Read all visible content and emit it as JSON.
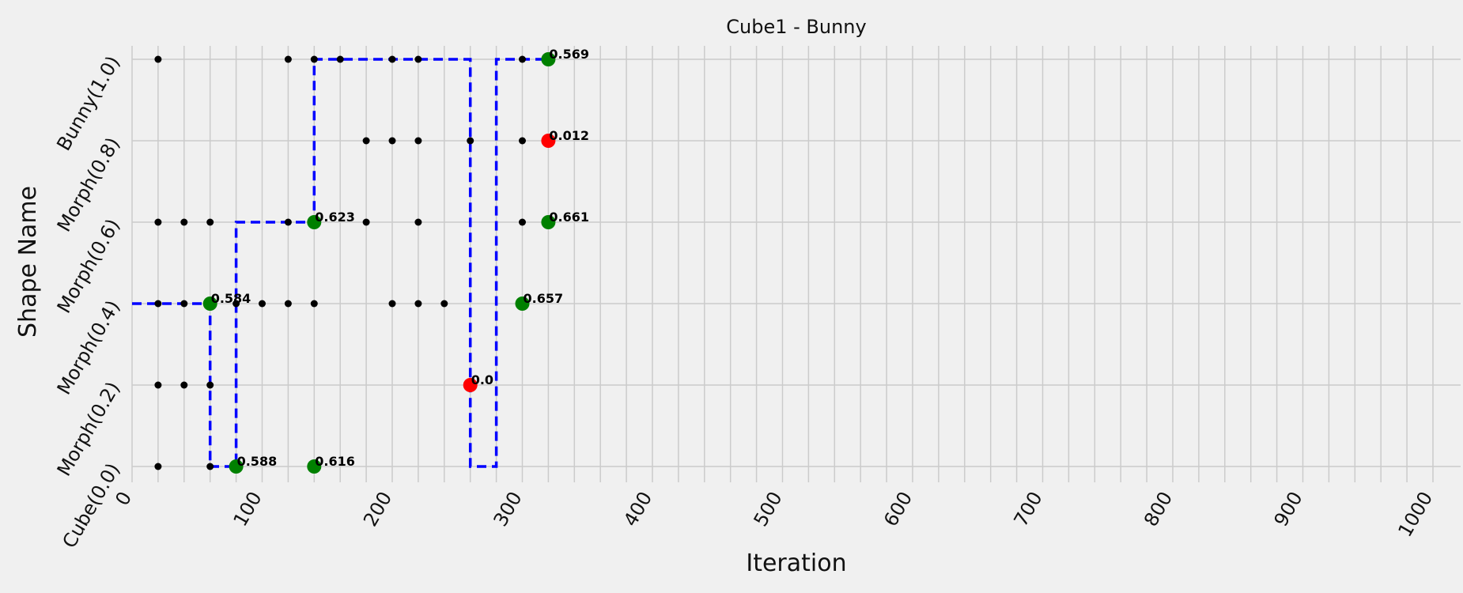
{
  "chart_data": {
    "type": "scatter",
    "title": "Cube1 - Bunny",
    "xlabel": "Iteration",
    "ylabel": "Shape Name",
    "xlim": [
      0,
      1000
    ],
    "x_ticks": [
      0,
      100,
      200,
      300,
      400,
      500,
      600,
      700,
      800,
      900,
      1000
    ],
    "y_categories": [
      "Cube(0.0)",
      "Morph(0.2)",
      "Morph(0.4)",
      "Morph(0.6)",
      "Morph(0.8)",
      "Bunny(1.0)"
    ],
    "grid": true,
    "colors": {
      "background": "#f0f0f0",
      "grid": "#cbcbcb",
      "small_point": "#000000",
      "good_point": "#008000",
      "bad_point": "#ff0000",
      "path": "#0000ff"
    },
    "small_points": [
      {
        "x": 20,
        "y": 5
      },
      {
        "x": 120,
        "y": 5
      },
      {
        "x": 140,
        "y": 5
      },
      {
        "x": 160,
        "y": 5
      },
      {
        "x": 200,
        "y": 5
      },
      {
        "x": 220,
        "y": 5
      },
      {
        "x": 300,
        "y": 5
      },
      {
        "x": 180,
        "y": 4
      },
      {
        "x": 200,
        "y": 4
      },
      {
        "x": 220,
        "y": 4
      },
      {
        "x": 260,
        "y": 4
      },
      {
        "x": 300,
        "y": 4
      },
      {
        "x": 20,
        "y": 3
      },
      {
        "x": 40,
        "y": 3
      },
      {
        "x": 60,
        "y": 3
      },
      {
        "x": 120,
        "y": 3
      },
      {
        "x": 180,
        "y": 3
      },
      {
        "x": 220,
        "y": 3
      },
      {
        "x": 300,
        "y": 3
      },
      {
        "x": 20,
        "y": 2
      },
      {
        "x": 40,
        "y": 2
      },
      {
        "x": 80,
        "y": 2
      },
      {
        "x": 100,
        "y": 2
      },
      {
        "x": 120,
        "y": 2
      },
      {
        "x": 140,
        "y": 2
      },
      {
        "x": 200,
        "y": 2
      },
      {
        "x": 220,
        "y": 2
      },
      {
        "x": 240,
        "y": 2
      },
      {
        "x": 20,
        "y": 1
      },
      {
        "x": 40,
        "y": 1
      },
      {
        "x": 60,
        "y": 1
      },
      {
        "x": 20,
        "y": 0
      },
      {
        "x": 60,
        "y": 0
      }
    ],
    "scored_points": [
      {
        "x": 60,
        "y": 2,
        "label": "0.584",
        "status": "good"
      },
      {
        "x": 80,
        "y": 0,
        "label": "0.588",
        "status": "good"
      },
      {
        "x": 140,
        "y": 3,
        "label": "0.623",
        "status": "good"
      },
      {
        "x": 140,
        "y": 0,
        "label": "0.616",
        "status": "good"
      },
      {
        "x": 260,
        "y": 1,
        "label": "0.0",
        "status": "bad"
      },
      {
        "x": 300,
        "y": 2,
        "label": "0.657",
        "status": "good"
      },
      {
        "x": 320,
        "y": 5,
        "label": "0.569",
        "status": "good"
      },
      {
        "x": 320,
        "y": 4,
        "label": "0.012",
        "status": "bad"
      },
      {
        "x": 320,
        "y": 3,
        "label": "0.661",
        "status": "good"
      }
    ],
    "path": [
      [
        0,
        2
      ],
      [
        60,
        2
      ],
      [
        60,
        0
      ],
      [
        80,
        0
      ],
      [
        80,
        3
      ],
      [
        140,
        3
      ],
      [
        140,
        5
      ],
      [
        260,
        5
      ],
      [
        260,
        0
      ],
      [
        280,
        0
      ],
      [
        280,
        5
      ],
      [
        320,
        5
      ]
    ]
  }
}
